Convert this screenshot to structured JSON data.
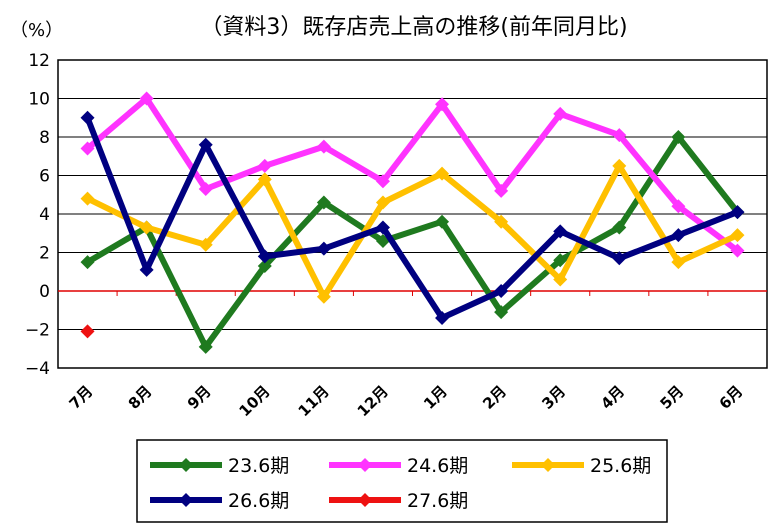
{
  "chart_data": {
    "type": "line",
    "title": "（資料3）既存店売上高の推移(前年同月比)",
    "unit_label": "（%）",
    "categories": [
      "7月",
      "8月",
      "9月",
      "10月",
      "11月",
      "12月",
      "1月",
      "2月",
      "3月",
      "4月",
      "5月",
      "6月"
    ],
    "ylim": [
      -4,
      12
    ],
    "yticks": [
      -4,
      -2,
      0,
      2,
      4,
      6,
      8,
      10,
      12
    ],
    "grid": true,
    "zero_line_color": "#e00000",
    "legend_position": "bottom",
    "series": [
      {
        "name": "23.6期",
        "color": "#1f7a1f",
        "values": [
          1.5,
          3.3,
          -2.9,
          1.3,
          4.6,
          2.6,
          3.6,
          -1.1,
          1.6,
          3.3,
          8.0,
          4.1
        ]
      },
      {
        "name": "24.6期",
        "color": "#ff33ff",
        "values": [
          7.4,
          10.0,
          5.3,
          6.5,
          7.5,
          5.7,
          9.7,
          5.2,
          9.2,
          8.1,
          4.4,
          2.1
        ]
      },
      {
        "name": "25.6期",
        "color": "#ffc000",
        "values": [
          4.8,
          3.3,
          2.4,
          5.8,
          -0.3,
          4.6,
          6.1,
          3.6,
          0.6,
          6.5,
          1.5,
          2.9
        ]
      },
      {
        "name": "26.6期",
        "color": "#000080",
        "values": [
          9.0,
          1.1,
          7.6,
          1.8,
          2.2,
          3.3,
          -1.4,
          0.0,
          3.1,
          1.7,
          2.9,
          4.1
        ]
      },
      {
        "name": "27.6期",
        "color": "#ee1111",
        "values": [
          -2.1,
          null,
          null,
          null,
          null,
          null,
          null,
          null,
          null,
          null,
          null,
          null
        ]
      }
    ]
  }
}
